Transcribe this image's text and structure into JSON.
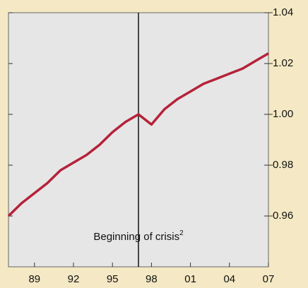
{
  "chart_data": {
    "type": "line",
    "x": [
      1987,
      1988,
      1989,
      1990,
      1991,
      1992,
      1993,
      1994,
      1995,
      1996,
      1997,
      1998,
      1999,
      2000,
      2001,
      2002,
      2003,
      2004,
      2005,
      2006,
      2007
    ],
    "series": [
      {
        "color": "#b5223a",
        "values": [
          0.96,
          0.965,
          0.969,
          0.973,
          0.978,
          0.981,
          0.984,
          0.988,
          0.993,
          0.997,
          1.0,
          0.996,
          1.002,
          1.006,
          1.009,
          1.012,
          1.014,
          1.016,
          1.018,
          1.021,
          1.024
        ]
      }
    ],
    "xlim": [
      1987,
      2007
    ],
    "xticks": [
      {
        "value": 1989,
        "label": "89"
      },
      {
        "value": 1992,
        "label": "92"
      },
      {
        "value": 1995,
        "label": "95"
      },
      {
        "value": 1998,
        "label": "98"
      },
      {
        "value": 2001,
        "label": "01"
      },
      {
        "value": 2004,
        "label": "04"
      },
      {
        "value": 2007,
        "label": "07"
      }
    ],
    "ylim": [
      0.94,
      1.04
    ],
    "yticks": [
      {
        "value": 0.96,
        "label": "0.96"
      },
      {
        "value": 0.98,
        "label": "0.98"
      },
      {
        "value": 1.0,
        "label": "1.00"
      },
      {
        "value": 1.02,
        "label": "1.02"
      },
      {
        "value": 1.04,
        "label": "1.04"
      }
    ],
    "annotation": {
      "x": 1997,
      "text": "Beginning of crisis",
      "footnote": "2"
    }
  }
}
